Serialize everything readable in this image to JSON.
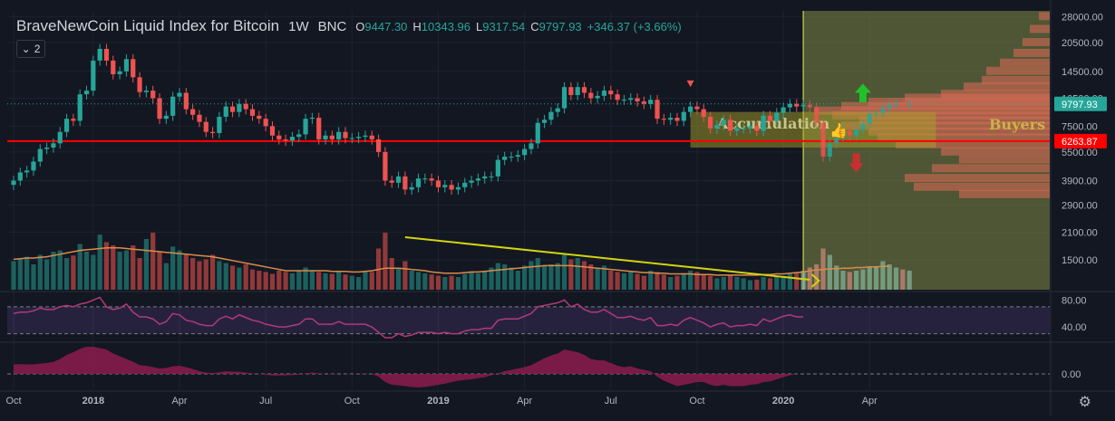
{
  "header": {
    "title": "BraveNewCoin Liquid Index for Bitcoin",
    "interval": "1W",
    "exchange": "BNC",
    "o_label": "O",
    "o_value": "9447.30",
    "h_label": "H",
    "h_value": "10343.96",
    "l_label": "L",
    "l_value": "9317.54",
    "c_label": "C",
    "c_value": "9797.93",
    "change": "+346.37 (+3.66%)"
  },
  "collapse_button": {
    "arrow_icon": "chevron-down-icon",
    "count": "2"
  },
  "colors": {
    "background": "#131722",
    "up": "#26a69a",
    "down": "#ef5350",
    "support_line": "#ff0000",
    "trend_line": "#d4d40f",
    "rsi_line": "#b03a7a",
    "macd_fill": "#8c1c4c",
    "projection_zone": "#7f8a45",
    "accumulation_box": "#a6a02a",
    "volume_profile": "#e06c55"
  },
  "chart_data": {
    "type": "candlestick",
    "title": "BraveNewCoin Liquid Index for Bitcoin",
    "interval": "1W",
    "y_scale": "log",
    "ylim": [
      1050,
      30000
    ],
    "y_ticks": [
      "28000.00",
      "20500.00",
      "14500.00",
      "10500.00",
      "7500.00",
      "5500.00",
      "3900.00",
      "2900.00",
      "2100.00",
      "1500.00"
    ],
    "y_tick_values": [
      28000,
      20500,
      14500,
      10500,
      7500,
      5500,
      3900,
      2900,
      2100,
      1500
    ],
    "x_ticks": [
      "Oct",
      "2018",
      "Apr",
      "Jul",
      "Oct",
      "2019",
      "Apr",
      "Jul",
      "Oct",
      "2020",
      "Apr"
    ],
    "x_tick_weeks": [
      0,
      12,
      25,
      38,
      51,
      64,
      77,
      90,
      103,
      116,
      129
    ],
    "current_price_label": "9797.93",
    "support_price_label": "6263.87",
    "support_level": 6263.87,
    "candles_close": [
      3900,
      4300,
      4400,
      4900,
      5700,
      5800,
      6100,
      7000,
      8200,
      8000,
      11000,
      11500,
      16500,
      19000,
      16500,
      14000,
      14500,
      16800,
      13500,
      11300,
      11500,
      10500,
      8200,
      8500,
      10700,
      11200,
      9200,
      8600,
      7900,
      7000,
      6900,
      8400,
      9500,
      8900,
      9800,
      9200,
      8500,
      8200,
      7500,
      6700,
      6400,
      6300,
      6600,
      6800,
      8200,
      8300,
      6400,
      6700,
      6400,
      7000,
      6500,
      6500,
      6600,
      6700,
      6400,
      5500,
      3900,
      3800,
      4100,
      3500,
      3600,
      4000,
      4000,
      3900,
      3600,
      3700,
      3500,
      3600,
      3800,
      3900,
      4000,
      4100,
      4100,
      5000,
      5200,
      5200,
      5300,
      5700,
      6100,
      7800,
      8100,
      8900,
      9300,
      12000,
      10900,
      12000,
      11200,
      10500,
      10800,
      11500,
      11000,
      10300,
      10300,
      10500,
      10100,
      9800,
      10300,
      8200,
      8100,
      8300,
      8000,
      8900,
      9500,
      9200,
      8400,
      7300,
      7600,
      8100,
      7100,
      7300,
      7300,
      7500,
      7100,
      8500,
      8000,
      8800,
      9400,
      9800,
      9500,
      9700,
      9400,
      7800,
      5200,
      6100,
      6600,
      7100,
      6700,
      7200,
      7700,
      8700,
      8800,
      9300,
      9700,
      9800,
      9700,
      9800
    ],
    "volume": [
      0.45,
      0.48,
      0.52,
      0.4,
      0.55,
      0.48,
      0.6,
      0.62,
      0.5,
      0.54,
      0.72,
      0.6,
      0.55,
      0.87,
      0.75,
      0.7,
      0.6,
      0.62,
      0.7,
      0.5,
      0.8,
      0.9,
      0.6,
      0.42,
      0.68,
      0.62,
      0.55,
      0.5,
      0.45,
      0.48,
      0.55,
      0.45,
      0.42,
      0.38,
      0.35,
      0.4,
      0.32,
      0.3,
      0.28,
      0.25,
      0.3,
      0.28,
      0.26,
      0.3,
      0.35,
      0.3,
      0.28,
      0.26,
      0.25,
      0.28,
      0.24,
      0.22,
      0.2,
      0.3,
      0.28,
      0.65,
      0.9,
      0.5,
      0.35,
      0.45,
      0.3,
      0.28,
      0.26,
      0.24,
      0.22,
      0.2,
      0.22,
      0.2,
      0.25,
      0.28,
      0.26,
      0.3,
      0.35,
      0.42,
      0.4,
      0.35,
      0.3,
      0.38,
      0.45,
      0.5,
      0.38,
      0.4,
      0.42,
      0.55,
      0.48,
      0.5,
      0.45,
      0.4,
      0.35,
      0.38,
      0.3,
      0.28,
      0.26,
      0.3,
      0.25,
      0.22,
      0.3,
      0.28,
      0.24,
      0.2,
      0.22,
      0.26,
      0.3,
      0.28,
      0.25,
      0.22,
      0.18,
      0.2,
      0.22,
      0.2,
      0.18,
      0.15,
      0.16,
      0.2,
      0.18,
      0.2,
      0.22,
      0.25,
      0.28,
      0.3,
      0.35,
      0.4,
      0.65,
      0.55,
      0.38,
      0.3,
      0.28,
      0.3,
      0.32,
      0.35,
      0.36,
      0.45,
      0.4,
      0.35,
      0.32,
      0.3
    ],
    "volume_ma": [
      0.48,
      0.49,
      0.5,
      0.5,
      0.51,
      0.52,
      0.54,
      0.56,
      0.58,
      0.6,
      0.62,
      0.63,
      0.64,
      0.65,
      0.66,
      0.66,
      0.66,
      0.65,
      0.64,
      0.63,
      0.62,
      0.61,
      0.6,
      0.59,
      0.58,
      0.57,
      0.56,
      0.55,
      0.54,
      0.53,
      0.52,
      0.5,
      0.48,
      0.46,
      0.44,
      0.42,
      0.4,
      0.38,
      0.36,
      0.34,
      0.32,
      0.3,
      0.3,
      0.3,
      0.3,
      0.3,
      0.3,
      0.3,
      0.29,
      0.29,
      0.29,
      0.28,
      0.28,
      0.29,
      0.3,
      0.32,
      0.34,
      0.34,
      0.34,
      0.33,
      0.32,
      0.31,
      0.3,
      0.28,
      0.27,
      0.26,
      0.26,
      0.26,
      0.27,
      0.28,
      0.28,
      0.29,
      0.3,
      0.31,
      0.32,
      0.33,
      0.34,
      0.35,
      0.36,
      0.37,
      0.38,
      0.38,
      0.38,
      0.38,
      0.38,
      0.37,
      0.36,
      0.35,
      0.34,
      0.33,
      0.32,
      0.31,
      0.3,
      0.29,
      0.28,
      0.27,
      0.27,
      0.26,
      0.26,
      0.25,
      0.25,
      0.25,
      0.25,
      0.24,
      0.24,
      0.24,
      0.23,
      0.23,
      0.23,
      0.23,
      0.23,
      0.23,
      0.23,
      0.24,
      0.24,
      0.25,
      0.25,
      0.26,
      0.27,
      0.28,
      0.3,
      0.31,
      0.32,
      0.33,
      0.33,
      0.34,
      0.34,
      0.35,
      0.35,
      0.36,
      0.36,
      0.37,
      0.37
    ],
    "rsi": {
      "ticks": [
        "80.00",
        "40.00"
      ],
      "ylim": [
        20,
        90
      ],
      "levels": [
        70,
        30
      ],
      "values": [
        60,
        62,
        62,
        64,
        68,
        66,
        66,
        70,
        72,
        70,
        74,
        76,
        80,
        84,
        70,
        66,
        68,
        74,
        62,
        55,
        55,
        52,
        44,
        48,
        60,
        58,
        50,
        48,
        44,
        42,
        42,
        52,
        56,
        52,
        58,
        54,
        50,
        48,
        44,
        42,
        40,
        40,
        42,
        44,
        52,
        52,
        44,
        44,
        44,
        48,
        44,
        44,
        44,
        44,
        40,
        32,
        24,
        24,
        30,
        26,
        28,
        32,
        32,
        32,
        30,
        32,
        30,
        30,
        34,
        36,
        36,
        38,
        38,
        50,
        52,
        52,
        52,
        56,
        60,
        70,
        72,
        74,
        76,
        80,
        70,
        74,
        66,
        62,
        62,
        66,
        60,
        54,
        54,
        56,
        52,
        50,
        54,
        42,
        42,
        44,
        42,
        50,
        54,
        50,
        46,
        40,
        44,
        46,
        40,
        42,
        42,
        44,
        42,
        52,
        48,
        52,
        56,
        58,
        55,
        55
      ],
      "last_point": 118
    },
    "macd": {
      "ticks": [
        "0.00"
      ],
      "ylim": [
        -1,
        1
      ],
      "values": [
        0.35,
        0.36,
        0.35,
        0.35,
        0.38,
        0.4,
        0.44,
        0.55,
        0.7,
        0.8,
        0.92,
        1.0,
        1.0,
        0.95,
        0.9,
        0.75,
        0.65,
        0.55,
        0.45,
        0.32,
        0.3,
        0.25,
        0.2,
        0.22,
        0.28,
        0.3,
        0.25,
        0.18,
        0.1,
        0.05,
        0.03,
        0.06,
        0.1,
        0.08,
        0.08,
        0.05,
        0.02,
        0.0,
        -0.03,
        -0.06,
        -0.06,
        -0.05,
        -0.04,
        -0.03,
        0.02,
        0.05,
        0.02,
        0.0,
        -0.02,
        0.0,
        -0.01,
        -0.01,
        0.01,
        0.02,
        -0.01,
        -0.1,
        -0.3,
        -0.4,
        -0.42,
        -0.45,
        -0.48,
        -0.5,
        -0.48,
        -0.44,
        -0.4,
        -0.36,
        -0.3,
        -0.25,
        -0.22,
        -0.2,
        -0.16,
        -0.12,
        -0.05,
        0.02,
        0.1,
        0.15,
        0.2,
        0.25,
        0.32,
        0.45,
        0.58,
        0.68,
        0.75,
        0.9,
        0.85,
        0.8,
        0.7,
        0.55,
        0.5,
        0.5,
        0.4,
        0.3,
        0.25,
        0.28,
        0.2,
        0.15,
        0.1,
        -0.1,
        -0.25,
        -0.35,
        -0.45,
        -0.4,
        -0.35,
        -0.3,
        -0.3,
        -0.4,
        -0.45,
        -0.4,
        -0.45,
        -0.45,
        -0.45,
        -0.4,
        -0.38,
        -0.3,
        -0.28,
        -0.2,
        -0.12,
        -0.05,
        0.0
      ],
      "last_point": 118
    },
    "annotations": {
      "accumulation_label": "Accumulation",
      "buyers_label": "Buyers",
      "thumbs_up_icon": "thumbs-up-icon",
      "up_arrow_icon": "green-up-arrow-icon",
      "down_arrow_icon": "red-down-arrow-icon",
      "triangle_marker_icon": "red-triangle-marker-icon",
      "trend_arrow_icon": "chevron-right-icon"
    },
    "settings_icon": "gear-icon"
  }
}
